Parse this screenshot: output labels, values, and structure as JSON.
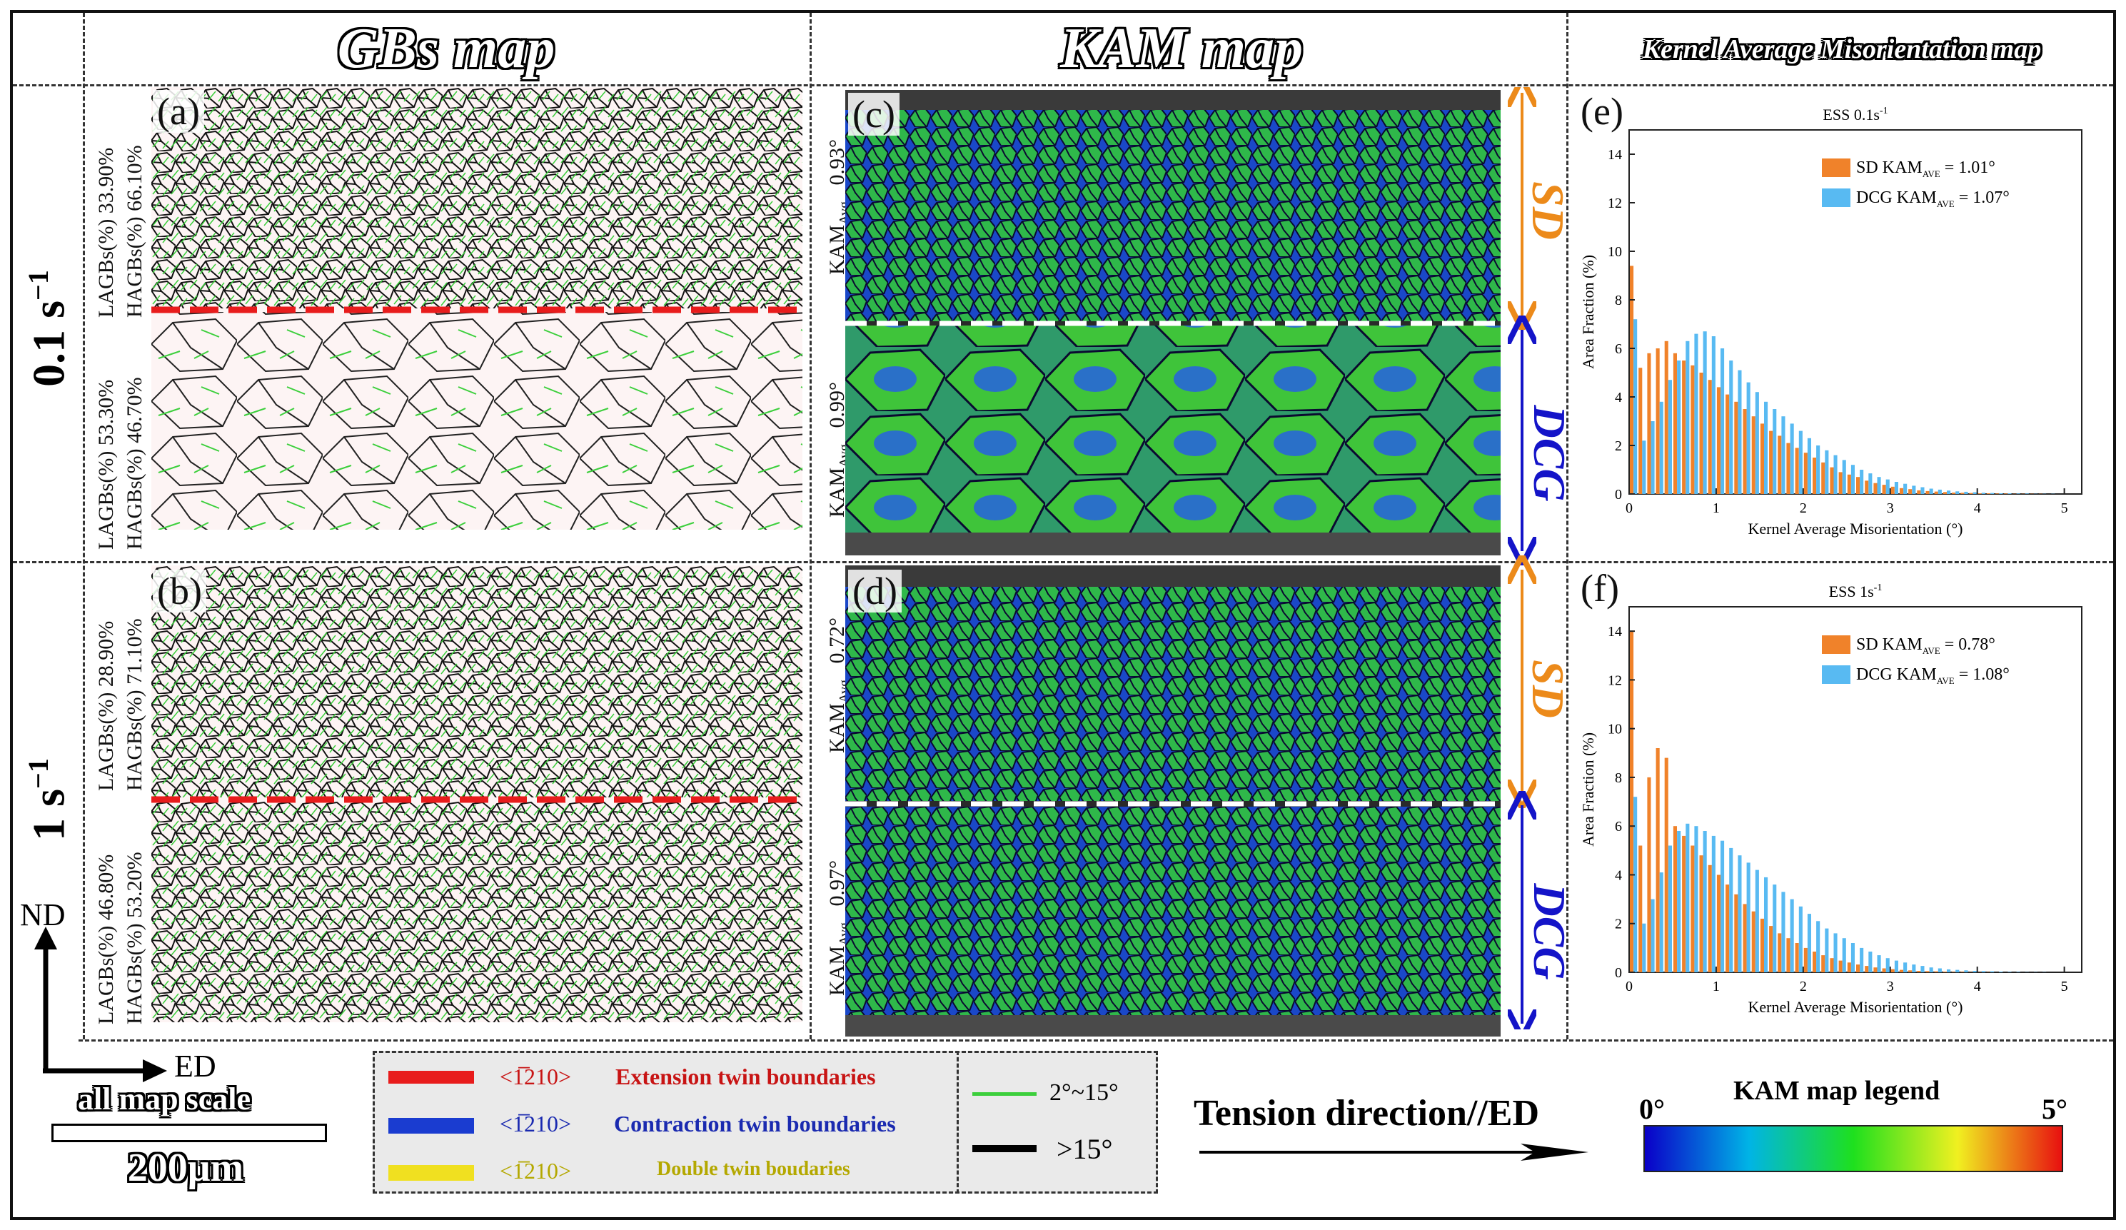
{
  "headers": {
    "gbs": "GBs map",
    "kam": "KAM map",
    "kernel": "Kernel Average Misorientation map"
  },
  "rows": {
    "r1": "0.1 s",
    "r1_sup": "−1",
    "r2": "1 s",
    "r2_sup": "−1"
  },
  "panels": {
    "a": "(a)",
    "b": "(b)",
    "c": "(c)",
    "d": "(d)",
    "e": "(e)",
    "f": "(f)"
  },
  "gb_stats": {
    "a_top": {
      "lagb": "LAGBs(%)  33.90%",
      "hagb": "HAGBs(%)  66.10%"
    },
    "a_bot": {
      "lagb": "LAGBs(%)  53.30%",
      "hagb": "HAGBs(%)  46.70%"
    },
    "b_top": {
      "lagb": "LAGBs(%)  28.90%",
      "hagb": "HAGBs(%)  71.10%"
    },
    "b_bot": {
      "lagb": "LAGBs(%)  46.80%",
      "hagb": "HAGBs(%)  53.20%"
    }
  },
  "kam_vals": {
    "c_top": "0.93°",
    "c_bot": "0.99°",
    "d_top": "0.72°",
    "d_bot": "0.97°",
    "kam_label": "KAM",
    "kam_sub": "Avg"
  },
  "zones": {
    "sd": "SD",
    "dcg": "DCG"
  },
  "colors": {
    "kam_sd_arrow": "#ec8a1a",
    "kam_dcg_arrow": "#1414c8",
    "sd_bar": "#f0822a",
    "dcg_bar": "#58baf2",
    "ext_twin": "#e81c1c",
    "con_twin": "#1a3cd0",
    "dbl_twin": "#f0e020",
    "lagb_line": "#3ccf3c",
    "hagb_line": "#000000"
  },
  "legend": {
    "nd": "ND",
    "ed": "ED",
    "scale_title": "all map scale",
    "scale_value": "200μm",
    "twin_index": "<1̅210>",
    "ext": "Extension twin boundaries",
    "con": "Contraction twin boundaries",
    "dbl": "Double twin boudaries",
    "lagb": "2°~15°",
    "hagb": ">15°",
    "tension": "Tension direction//ED",
    "kam_legend_title": "KAM map legend",
    "kam_min": "0°",
    "kam_max": "5°"
  },
  "chart_data": [
    {
      "type": "bar",
      "title": "ESS  0.1s",
      "title_sup": "-1",
      "xlabel": "Kernel Average Misorientation (°)",
      "ylabel": "Area Fraction (%)",
      "xlim": [
        0,
        5.2
      ],
      "ylim": [
        0,
        15
      ],
      "xticks": [
        0,
        1,
        2,
        3,
        4,
        5
      ],
      "yticks": [
        0,
        2,
        4,
        6,
        8,
        10,
        12,
        14
      ],
      "legend": [
        "SD  KAM",
        "DCG  KAM"
      ],
      "legend_sub": "AVE",
      "legend_vals": [
        " = 1.01°",
        " = 1.07°"
      ],
      "x": [
        0.05,
        0.15,
        0.25,
        0.35,
        0.45,
        0.55,
        0.65,
        0.75,
        0.85,
        0.95,
        1.05,
        1.15,
        1.25,
        1.35,
        1.45,
        1.55,
        1.65,
        1.75,
        1.85,
        1.95,
        2.05,
        2.15,
        2.25,
        2.35,
        2.45,
        2.55,
        2.65,
        2.75,
        2.85,
        2.95,
        3.05,
        3.15,
        3.25,
        3.35,
        3.45,
        3.55,
        3.65,
        3.75,
        3.85,
        3.95,
        4.05,
        4.15,
        4.25,
        4.35,
        4.45,
        4.55,
        4.65,
        4.75,
        4.85,
        4.95
      ],
      "series": [
        {
          "name": "SD",
          "values": [
            9.4,
            5.2,
            5.8,
            6.0,
            6.3,
            5.8,
            5.5,
            5.3,
            5.0,
            4.7,
            4.4,
            4.1,
            3.8,
            3.5,
            3.2,
            2.9,
            2.6,
            2.4,
            2.1,
            1.9,
            1.7,
            1.5,
            1.3,
            1.1,
            0.9,
            0.8,
            0.7,
            0.55,
            0.45,
            0.38,
            0.3,
            0.24,
            0.2,
            0.15,
            0.12,
            0.1,
            0.08,
            0.06,
            0.05,
            0.04,
            0.03,
            0.03,
            0.02,
            0.02,
            0.01,
            0.01,
            0.01,
            0.01,
            0.0,
            0.0
          ]
        },
        {
          "name": "DCG",
          "values": [
            7.2,
            2.2,
            3.0,
            3.8,
            4.7,
            5.5,
            6.3,
            6.6,
            6.7,
            6.5,
            6.0,
            5.5,
            5.1,
            4.6,
            4.2,
            3.8,
            3.5,
            3.2,
            2.9,
            2.6,
            2.3,
            2.0,
            1.8,
            1.6,
            1.4,
            1.2,
            1.0,
            0.85,
            0.7,
            0.6,
            0.5,
            0.42,
            0.34,
            0.28,
            0.22,
            0.18,
            0.14,
            0.11,
            0.09,
            0.07,
            0.05,
            0.04,
            0.03,
            0.03,
            0.02,
            0.02,
            0.01,
            0.01,
            0.01,
            0.0
          ]
        }
      ]
    },
    {
      "type": "bar",
      "title": "ESS  1s",
      "title_sup": "-1",
      "xlabel": "Kernel Average Misorientation (°)",
      "ylabel": "Area Fraction (%)",
      "xlim": [
        0,
        5.2
      ],
      "ylim": [
        0,
        15
      ],
      "xticks": [
        0,
        1,
        2,
        3,
        4,
        5
      ],
      "yticks": [
        0,
        2,
        4,
        6,
        8,
        10,
        12,
        14
      ],
      "legend": [
        "SD  KAM",
        "DCG  KAM"
      ],
      "legend_sub": "AVE",
      "legend_vals": [
        " = 0.78°",
        " = 1.08°"
      ],
      "x": [
        0.05,
        0.15,
        0.25,
        0.35,
        0.45,
        0.55,
        0.65,
        0.75,
        0.85,
        0.95,
        1.05,
        1.15,
        1.25,
        1.35,
        1.45,
        1.55,
        1.65,
        1.75,
        1.85,
        1.95,
        2.05,
        2.15,
        2.25,
        2.35,
        2.45,
        2.55,
        2.65,
        2.75,
        2.85,
        2.95,
        3.05,
        3.15,
        3.25,
        3.35,
        3.45,
        3.55,
        3.65,
        3.75,
        3.85,
        3.95,
        4.05,
        4.15,
        4.25,
        4.35,
        4.45,
        4.55,
        4.65,
        4.75,
        4.85,
        4.95
      ],
      "series": [
        {
          "name": "SD",
          "values": [
            14.0,
            5.2,
            8.0,
            9.2,
            8.8,
            6.0,
            5.6,
            5.2,
            4.8,
            4.4,
            4.0,
            3.6,
            3.2,
            2.8,
            2.5,
            2.2,
            1.9,
            1.6,
            1.4,
            1.2,
            1.0,
            0.85,
            0.7,
            0.58,
            0.48,
            0.4,
            0.32,
            0.26,
            0.2,
            0.16,
            0.13,
            0.1,
            0.08,
            0.06,
            0.05,
            0.04,
            0.03,
            0.02,
            0.02,
            0.01,
            0.01,
            0.01,
            0.0,
            0.0,
            0.0,
            0.0,
            0.0,
            0.0,
            0.0,
            0.0
          ]
        },
        {
          "name": "DCG",
          "values": [
            7.2,
            2.0,
            3.0,
            4.1,
            5.2,
            5.8,
            6.1,
            6.0,
            5.8,
            5.6,
            5.4,
            5.1,
            4.8,
            4.5,
            4.2,
            3.9,
            3.6,
            3.3,
            3.0,
            2.7,
            2.4,
            2.1,
            1.8,
            1.6,
            1.4,
            1.2,
            1.0,
            0.85,
            0.7,
            0.58,
            0.48,
            0.4,
            0.32,
            0.26,
            0.2,
            0.16,
            0.12,
            0.1,
            0.08,
            0.06,
            0.05,
            0.04,
            0.03,
            0.02,
            0.02,
            0.01,
            0.01,
            0.01,
            0.0,
            0.0
          ]
        }
      ]
    }
  ]
}
